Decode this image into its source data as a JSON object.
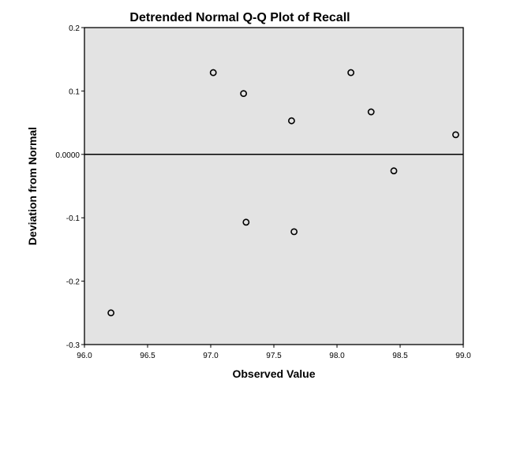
{
  "chart_data": {
    "type": "scatter",
    "title": "Detrended Normal Q-Q Plot of Recall",
    "xlabel": "Observed Value",
    "ylabel": "Deviation from Normal",
    "xlim": [
      96.0,
      99.0
    ],
    "ylim": [
      -0.3,
      0.2
    ],
    "x_ticks": [
      96.0,
      96.5,
      97.0,
      97.5,
      98.0,
      98.5,
      99.0
    ],
    "x_tick_labels": [
      "96.0",
      "96.5",
      "97.0",
      "97.5",
      "98.0",
      "98.5",
      "99.0"
    ],
    "y_ticks": [
      0.2,
      0.1,
      0.0,
      -0.1,
      -0.2,
      -0.3
    ],
    "y_tick_labels": [
      "0.2",
      "0.1",
      "0.0000",
      "-0.1",
      "-0.2",
      "-0.3"
    ],
    "reference_line_y": 0.0,
    "grid": false,
    "plot_background": "#e3e3e3",
    "marker": "open-circle",
    "points": [
      {
        "x": 96.21,
        "y": -0.25
      },
      {
        "x": 97.02,
        "y": 0.129
      },
      {
        "x": 97.26,
        "y": 0.096
      },
      {
        "x": 97.28,
        "y": -0.107
      },
      {
        "x": 97.64,
        "y": 0.053
      },
      {
        "x": 97.66,
        "y": -0.122
      },
      {
        "x": 98.11,
        "y": 0.129
      },
      {
        "x": 98.27,
        "y": 0.067
      },
      {
        "x": 98.45,
        "y": -0.026
      },
      {
        "x": 98.94,
        "y": 0.031
      }
    ]
  }
}
